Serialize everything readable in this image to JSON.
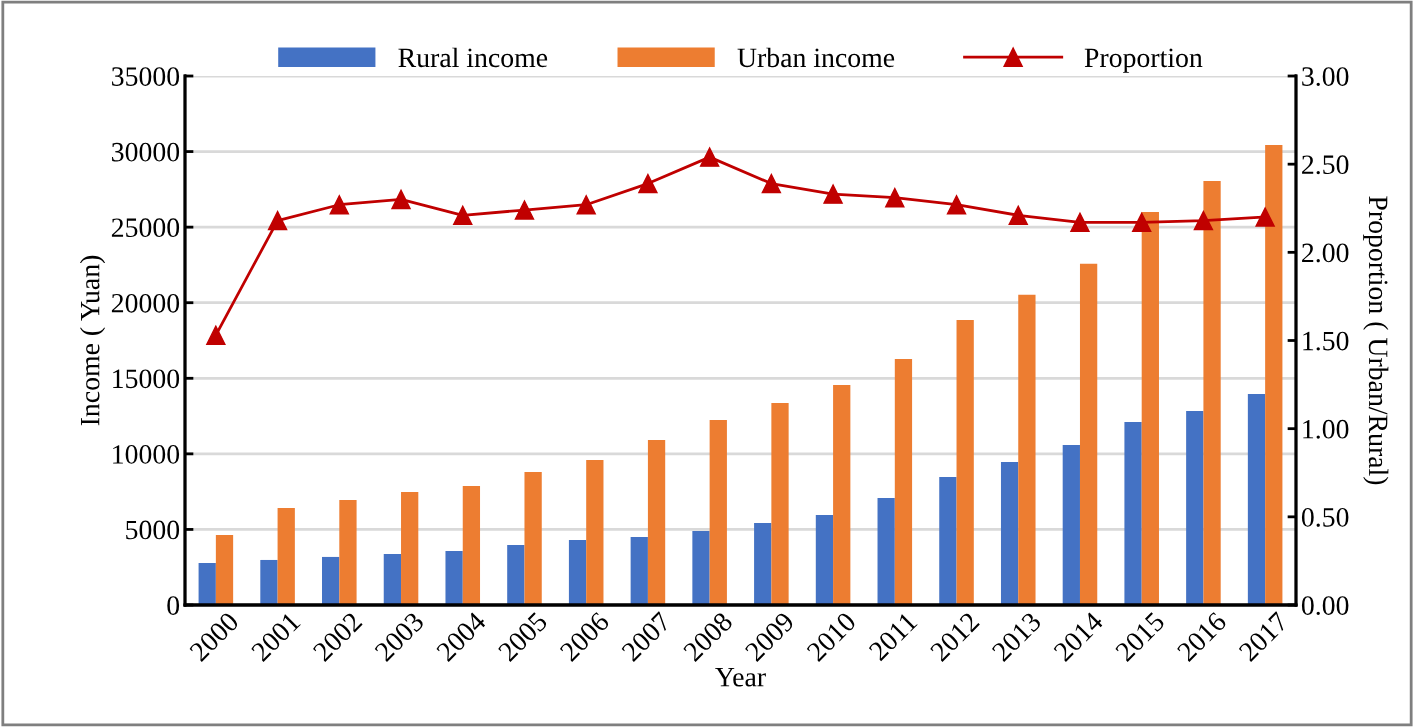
{
  "chart_data": {
    "type": "bar",
    "xlabel": "Year",
    "ylabel": "Income ( Yuan)",
    "y2label": "Proportion ( Urban/Rural)",
    "categories": [
      "2000",
      "2001",
      "2002",
      "2003",
      "2004",
      "2005",
      "2006",
      "2007",
      "2008",
      "2009",
      "2010",
      "2011",
      "2012",
      "2013",
      "2014",
      "2015",
      "2016",
      "2017"
    ],
    "series": [
      {
        "name": "Rural income",
        "color": "#4472c4",
        "values": [
          2780,
          2980,
          3180,
          3380,
          3570,
          3970,
          4300,
          4500,
          4900,
          5430,
          5950,
          7080,
          8470,
          9460,
          10590,
          12110,
          12840,
          13960
        ]
      },
      {
        "name": "Urban income",
        "color": "#ed7d31",
        "values": [
          4630,
          6420,
          6950,
          7480,
          7880,
          8800,
          9600,
          10920,
          12240,
          13370,
          14560,
          16280,
          18860,
          20520,
          22570,
          26010,
          28060,
          30440
        ]
      },
      {
        "name": "Proportion",
        "type": "line",
        "axis": "y2",
        "color": "#c00000",
        "marker": "triangle",
        "values": [
          1.53,
          2.18,
          2.27,
          2.3,
          2.21,
          2.24,
          2.27,
          2.39,
          2.54,
          2.39,
          2.33,
          2.31,
          2.27,
          2.21,
          2.17,
          2.17,
          2.18,
          2.2
        ]
      }
    ],
    "ylim": [
      0,
      35000
    ],
    "yticks": [
      0,
      5000,
      10000,
      15000,
      20000,
      25000,
      30000,
      35000
    ],
    "y2lim": [
      0,
      3
    ],
    "y2ticks": [
      {
        "value": 0,
        "label": "0.00"
      },
      {
        "value": 0.5,
        "label": "0.50"
      },
      {
        "value": 1,
        "label": "1.00"
      },
      {
        "value": 1.5,
        "label": "1.50"
      },
      {
        "value": 2,
        "label": "2.00"
      },
      {
        "value": 2.5,
        "label": "2.50"
      },
      {
        "value": 3,
        "label": "3.00"
      }
    ],
    "grid": "y",
    "legend": "top"
  }
}
